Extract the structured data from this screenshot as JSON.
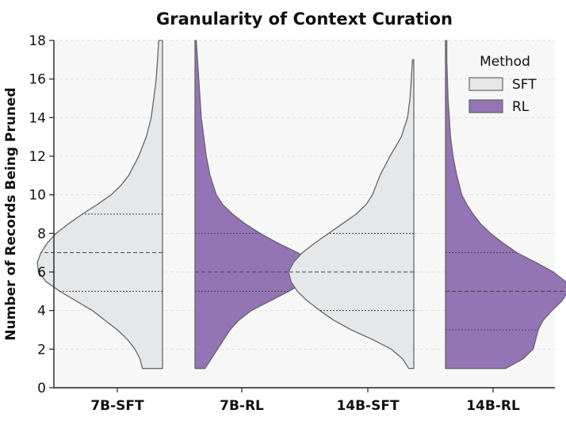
{
  "chart_data": {
    "type": "violin",
    "title": "Granularity of Context Curation",
    "xlabel": "",
    "ylabel": "Number of Records Being Pruned",
    "ylim": [
      0,
      18
    ],
    "yticks": [
      0,
      2,
      4,
      6,
      8,
      10,
      12,
      14,
      16,
      18
    ],
    "categories": [
      "7B-SFT",
      "7B-RL",
      "14B-SFT",
      "14B-RL"
    ],
    "grid": true,
    "legend": {
      "title": "Method",
      "position": "top-right",
      "entries": [
        {
          "label": "SFT",
          "color": "#e6e7e9"
        },
        {
          "label": "RL",
          "color": "#9374b5"
        }
      ]
    },
    "colors": {
      "SFT": "#e6e7e9",
      "RL": "#9374b5",
      "edge": "#666666",
      "background": "#f7f7f7"
    },
    "violins": [
      {
        "category": "7B-SFT",
        "method": "SFT",
        "side": "left",
        "min": 1,
        "max": 18,
        "quartiles": [
          5,
          7,
          9
        ],
        "profile": [
          [
            1,
            0.16
          ],
          [
            1.5,
            0.18
          ],
          [
            2,
            0.22
          ],
          [
            2.5,
            0.28
          ],
          [
            3,
            0.36
          ],
          [
            3.5,
            0.46
          ],
          [
            4,
            0.56
          ],
          [
            4.5,
            0.69
          ],
          [
            5,
            0.82
          ],
          [
            5.5,
            0.93
          ],
          [
            6,
            0.99
          ],
          [
            6.5,
            1.0
          ],
          [
            7,
            0.97
          ],
          [
            7.5,
            0.92
          ],
          [
            8,
            0.85
          ],
          [
            8.5,
            0.75
          ],
          [
            9,
            0.64
          ],
          [
            9.5,
            0.52
          ],
          [
            10,
            0.41
          ],
          [
            10.5,
            0.33
          ],
          [
            11,
            0.27
          ],
          [
            11.5,
            0.23
          ],
          [
            12,
            0.19
          ],
          [
            13,
            0.13
          ],
          [
            14,
            0.09
          ],
          [
            15,
            0.07
          ],
          [
            16,
            0.05
          ],
          [
            17,
            0.04
          ],
          [
            18,
            0.03
          ]
        ]
      },
      {
        "category": "7B-RL",
        "method": "RL",
        "side": "right",
        "min": 1,
        "max": 18,
        "quartiles": [
          5,
          6,
          8
        ],
        "profile": [
          [
            1,
            0.08
          ],
          [
            1.5,
            0.13
          ],
          [
            2,
            0.18
          ],
          [
            2.5,
            0.23
          ],
          [
            3,
            0.28
          ],
          [
            3.5,
            0.35
          ],
          [
            4,
            0.45
          ],
          [
            4.5,
            0.6
          ],
          [
            5,
            0.75
          ],
          [
            5.5,
            0.88
          ],
          [
            6,
            1.0
          ],
          [
            6.5,
            0.95
          ],
          [
            7,
            0.82
          ],
          [
            7.5,
            0.66
          ],
          [
            8,
            0.52
          ],
          [
            8.5,
            0.4
          ],
          [
            9,
            0.3
          ],
          [
            9.5,
            0.22
          ],
          [
            10,
            0.17
          ],
          [
            11,
            0.12
          ],
          [
            12,
            0.09
          ],
          [
            13,
            0.07
          ],
          [
            14,
            0.05
          ],
          [
            15,
            0.04
          ],
          [
            16,
            0.03
          ],
          [
            17,
            0.02
          ],
          [
            18,
            0.01
          ]
        ]
      },
      {
        "category": "14B-SFT",
        "method": "SFT",
        "side": "left",
        "min": 1,
        "max": 17,
        "quartiles": [
          4,
          6,
          8
        ],
        "profile": [
          [
            1,
            0.04
          ],
          [
            1.5,
            0.09
          ],
          [
            2,
            0.18
          ],
          [
            2.5,
            0.33
          ],
          [
            3,
            0.5
          ],
          [
            3.5,
            0.64
          ],
          [
            4,
            0.75
          ],
          [
            4.5,
            0.85
          ],
          [
            5,
            0.93
          ],
          [
            5.5,
            0.98
          ],
          [
            6,
            1.0
          ],
          [
            6.5,
            0.96
          ],
          [
            7,
            0.89
          ],
          [
            7.5,
            0.79
          ],
          [
            8,
            0.68
          ],
          [
            8.5,
            0.57
          ],
          [
            9,
            0.46
          ],
          [
            9.5,
            0.38
          ],
          [
            10,
            0.33
          ],
          [
            10.5,
            0.3
          ],
          [
            11,
            0.27
          ],
          [
            12,
            0.19
          ],
          [
            13,
            0.1
          ],
          [
            14,
            0.05
          ],
          [
            15,
            0.03
          ],
          [
            16,
            0.02
          ],
          [
            17,
            0.01
          ]
        ]
      },
      {
        "category": "14B-RL",
        "method": "RL",
        "side": "right",
        "min": 1,
        "max": 18,
        "quartiles": [
          3,
          5,
          7
        ],
        "profile": [
          [
            1,
            0.48
          ],
          [
            1.5,
            0.62
          ],
          [
            2,
            0.7
          ],
          [
            2.5,
            0.72
          ],
          [
            3,
            0.74
          ],
          [
            3.5,
            0.78
          ],
          [
            4,
            0.85
          ],
          [
            4.5,
            0.93
          ],
          [
            5,
            0.98
          ],
          [
            5.5,
            0.96
          ],
          [
            6,
            0.86
          ],
          [
            6.5,
            0.72
          ],
          [
            7,
            0.57
          ],
          [
            7.5,
            0.46
          ],
          [
            8,
            0.36
          ],
          [
            8.5,
            0.28
          ],
          [
            9,
            0.22
          ],
          [
            9.5,
            0.17
          ],
          [
            10,
            0.13
          ],
          [
            11,
            0.09
          ],
          [
            12,
            0.06
          ],
          [
            13,
            0.04
          ],
          [
            14,
            0.03
          ],
          [
            15,
            0.02
          ],
          [
            16,
            0.015
          ],
          [
            17,
            0.01
          ],
          [
            18,
            0.01
          ]
        ]
      }
    ]
  }
}
